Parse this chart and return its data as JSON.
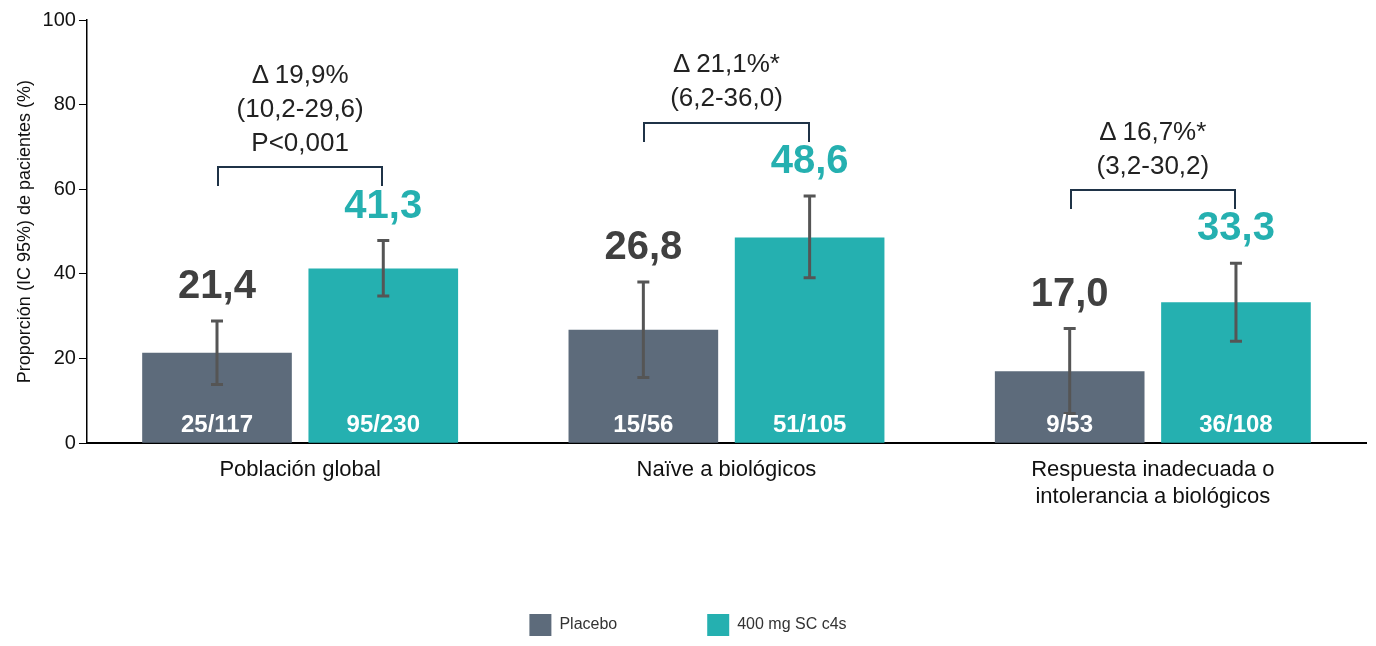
{
  "chart_data": {
    "type": "bar",
    "ylabel": "Proporción (IC 95%) de pacientes (%)",
    "categories": [
      "Población global",
      "Naïve a biológicos",
      "Respuesta inadecuada o intolerancia a biológicos"
    ],
    "series": [
      {
        "name": "Placebo",
        "color": "#5d6b7b",
        "values": [
          21.4,
          26.8,
          17.0
        ],
        "value_labels": [
          "21,4",
          "26,8",
          "17,0"
        ],
        "errors": [
          [
            13.9,
            28.9
          ],
          [
            15.5,
            38.1
          ],
          [
            7.0,
            27.1
          ]
        ]
      },
      {
        "name": "400 mg SC c4s",
        "color": "#25b0b0",
        "values": [
          41.3,
          48.6,
          33.3
        ],
        "value_labels": [
          "41,3",
          "48,6",
          "33,3"
        ],
        "errors": [
          [
            34.8,
            47.9
          ],
          [
            39.1,
            58.4
          ],
          [
            24.1,
            42.5
          ]
        ]
      }
    ],
    "annotations": [
      "25/117",
      "95/230",
      "15/56",
      "51/105",
      "9/53",
      "36/108",
      "Δ 19,9%\n(10,2-29,6)\nP<0,001",
      "Δ 21,1%*\n(6,2-36,0)",
      "Δ 16,7%*\n(3,2-30,2)"
    ],
    "ylim": [
      0,
      100
    ],
    "yticks": [
      0,
      20,
      40,
      60,
      80,
      100
    ],
    "grid": false,
    "legend": "bottom"
  }
}
